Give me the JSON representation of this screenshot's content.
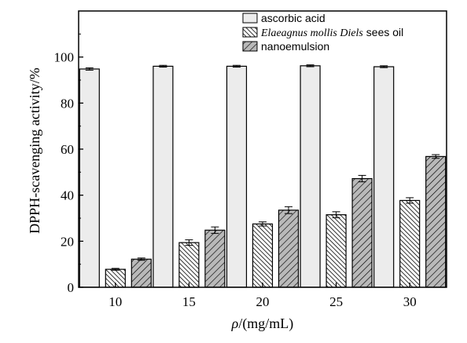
{
  "chart_data": {
    "type": "bar",
    "categories": [
      "10",
      "15",
      "20",
      "25",
      "30"
    ],
    "series": [
      {
        "name": "ascorbic acid",
        "values": [
          94.8,
          96.0,
          96.0,
          96.2,
          95.8
        ],
        "errors": [
          0.5,
          0.4,
          0.4,
          0.4,
          0.4
        ],
        "fill": "light-gray"
      },
      {
        "name": "Elaeagnus mollis Diels sees oil",
        "values": [
          7.8,
          19.4,
          27.5,
          31.5,
          37.7
        ],
        "errors": [
          0.4,
          1.2,
          0.9,
          1.3,
          1.2
        ],
        "fill": "dense-hatch"
      },
      {
        "name": "nanoemulsion",
        "values": [
          12.2,
          24.8,
          33.5,
          47.2,
          56.8
        ],
        "errors": [
          0.5,
          1.4,
          1.5,
          1.4,
          0.8
        ],
        "fill": "diagonal-hatch"
      }
    ],
    "xlabel": {
      "italic": "ρ",
      "rest": "/(mg/mL)"
    },
    "ylabel": "DPPH-scavenging activity/%",
    "ylim": [
      0,
      120
    ],
    "yticks": [
      "0",
      "20",
      "40",
      "60",
      "80",
      "100"
    ],
    "legend_position": "top-right",
    "legend": [
      {
        "italic": "",
        "rest": "ascorbic acid"
      },
      {
        "italic": "Elaeagnus mollis Diels",
        "rest": " sees oil"
      },
      {
        "italic": "",
        "rest": "nanoemulsion"
      }
    ],
    "colors": {
      "light": "#ececec",
      "axis": "#000000"
    }
  }
}
